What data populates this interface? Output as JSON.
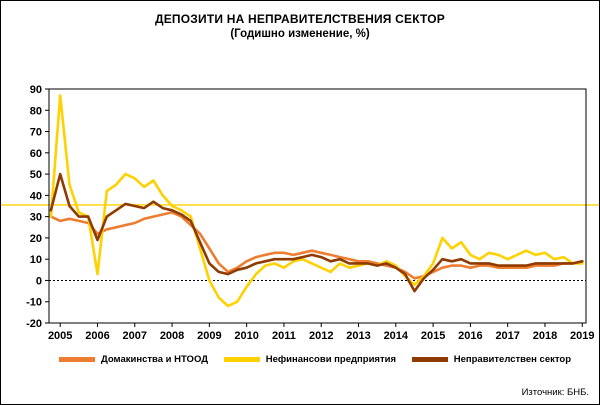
{
  "title": "ДЕПОЗИТИ НА НЕПРАВИТЕЛСТВЕНИЯ СЕКТОР",
  "subtitle": "(Годишно изменение, %)",
  "source": "Източник: БНБ.",
  "chart_data": {
    "type": "line",
    "title": "ДЕПОЗИТИ НА НЕПРАВИТЕЛСТВЕНИЯ СЕКТОР",
    "subtitle": "(Годишно изменение, %)",
    "xlabel": "",
    "ylabel": "",
    "ylim": [
      -20,
      90
    ],
    "yticks": [
      90,
      80,
      70,
      60,
      50,
      40,
      30,
      20,
      10,
      0,
      -10,
      -20
    ],
    "xticks": [
      2005,
      2006,
      2007,
      2008,
      2009,
      2010,
      2011,
      2012,
      2013,
      2014,
      2015,
      2016,
      2017,
      2018,
      2019
    ],
    "grid": false,
    "zero_line_dashed": true,
    "decorative_line_value": 35.5,
    "legend_position": "bottom",
    "x": [
      2004.75,
      2005,
      2005.25,
      2005.5,
      2005.75,
      2006,
      2006.25,
      2006.5,
      2006.75,
      2007,
      2007.25,
      2007.5,
      2007.75,
      2008,
      2008.25,
      2008.5,
      2008.75,
      2009,
      2009.25,
      2009.5,
      2009.75,
      2010,
      2010.25,
      2010.5,
      2010.75,
      2011,
      2011.25,
      2011.5,
      2011.75,
      2012,
      2012.25,
      2012.5,
      2012.75,
      2013,
      2013.25,
      2013.5,
      2013.75,
      2014,
      2014.25,
      2014.5,
      2014.75,
      2015,
      2015.25,
      2015.5,
      2015.75,
      2016,
      2016.25,
      2016.5,
      2016.75,
      2017,
      2017.25,
      2017.5,
      2017.75,
      2018,
      2018.25,
      2018.5,
      2018.75,
      2019
    ],
    "series": [
      {
        "name": "Домакинства и НТООД",
        "color": "#ED7D31",
        "values": [
          30,
          28,
          29,
          28,
          27,
          22,
          24,
          25,
          26,
          27,
          29,
          30,
          31,
          32,
          30,
          26,
          22,
          15,
          8,
          4,
          6,
          9,
          11,
          12,
          13,
          13,
          12,
          13,
          14,
          13,
          12,
          11,
          10,
          9,
          9,
          8,
          7,
          6,
          4,
          1,
          2,
          4,
          6,
          7,
          7,
          6,
          7,
          7,
          6,
          6,
          6,
          6,
          7,
          7,
          7,
          8,
          8,
          9
        ]
      },
      {
        "name": "Нефинансови предприятия",
        "color": "#FFD100",
        "values": [
          30,
          87,
          45,
          32,
          30,
          3,
          42,
          45,
          50,
          48,
          44,
          47,
          40,
          35,
          33,
          30,
          15,
          0,
          -8,
          -12,
          -10,
          -3,
          3,
          7,
          8,
          6,
          9,
          10,
          8,
          6,
          4,
          8,
          6,
          7,
          8,
          7,
          9,
          7,
          2,
          -2,
          2,
          8,
          20,
          15,
          18,
          12,
          10,
          13,
          12,
          10,
          12,
          14,
          12,
          13,
          10,
          11,
          8,
          8
        ]
      },
      {
        "name": "Неправителствен сектор",
        "color": "#8F3B00",
        "values": [
          33,
          50,
          35,
          30,
          30,
          19,
          30,
          33,
          36,
          35,
          34,
          37,
          34,
          33,
          31,
          28,
          18,
          8,
          4,
          3,
          5,
          6,
          8,
          9,
          10,
          10,
          10,
          11,
          12,
          11,
          9,
          10,
          8,
          8,
          8,
          7,
          8,
          6,
          3,
          -5,
          1,
          5,
          10,
          9,
          10,
          8,
          8,
          8,
          7,
          7,
          7,
          7,
          8,
          8,
          8,
          8,
          8,
          9
        ]
      }
    ]
  }
}
